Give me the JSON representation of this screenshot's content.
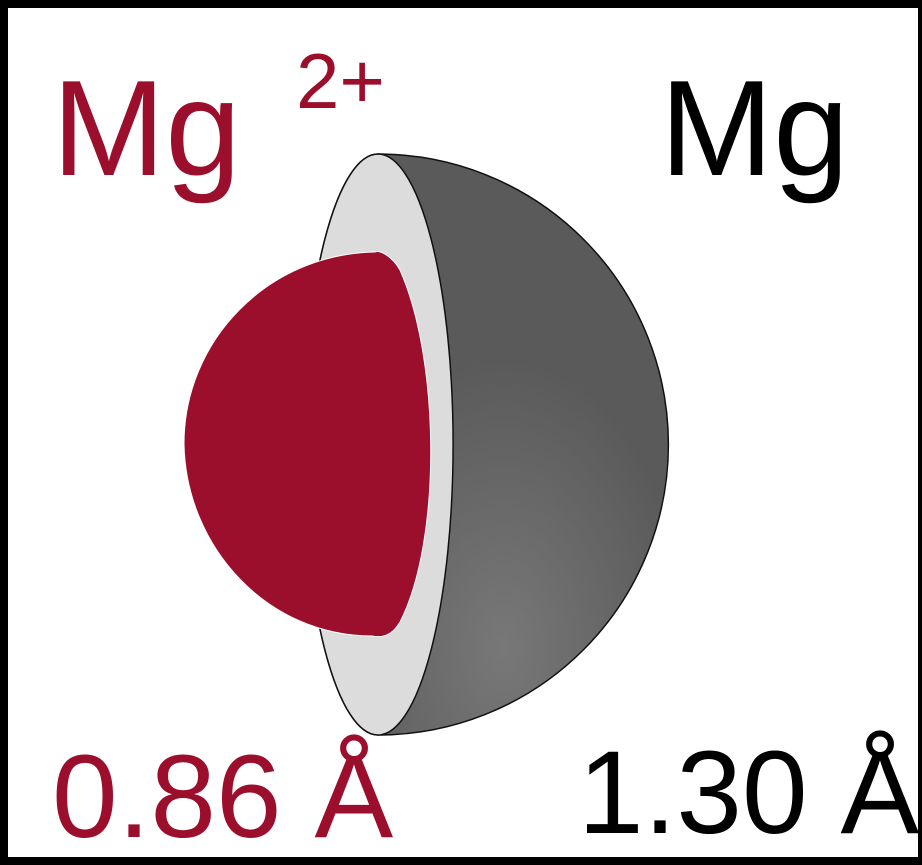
{
  "ion": {
    "symbol": "Mg",
    "charge": "2+",
    "radius": "0.86 Å"
  },
  "atom": {
    "symbol": "Mg",
    "radius": "1.30 Å"
  },
  "colors": {
    "ion": "#9b0f2c",
    "atom_outer": "#5a5a5a",
    "atom_cut_face": "#dcdcdc",
    "text_dark": "#000000"
  }
}
